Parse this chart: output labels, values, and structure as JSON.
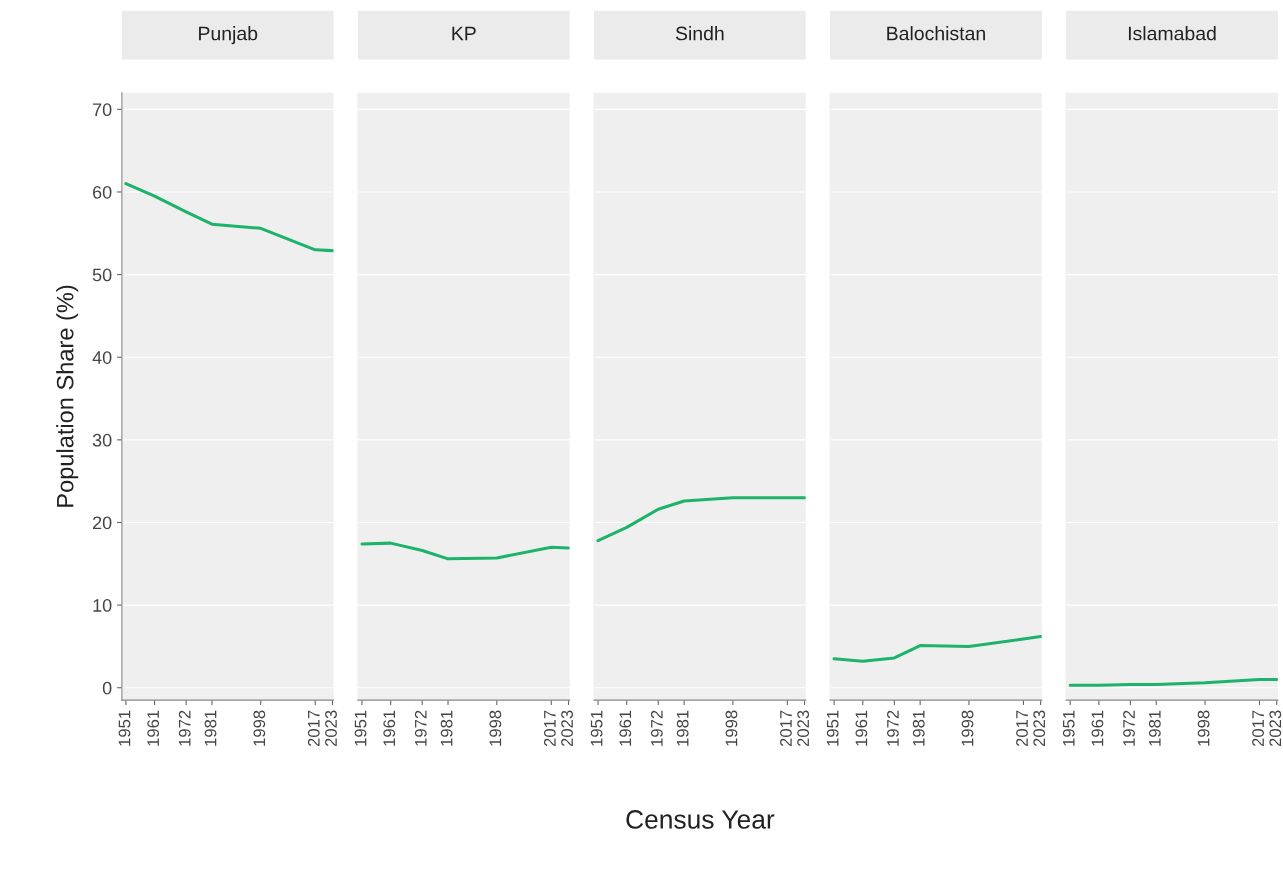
{
  "chart_data": [
    {
      "type": "line",
      "title": "Punjab",
      "ylabel": "Population Share (%)",
      "x": [
        1951,
        1961,
        1972,
        1981,
        1998,
        2017,
        2023
      ],
      "series": [
        {
          "color": "#1db36b",
          "values": [
            61.0,
            59.5,
            57.6,
            56.1,
            55.6,
            53.0,
            52.9
          ]
        }
      ],
      "xlim": [
        1949.6,
        2023.4
      ],
      "ylim": [
        -1.5,
        72
      ],
      "xticks": [
        1951,
        1961,
        1972,
        1981,
        1998,
        2017,
        2023
      ],
      "yticks": [
        0,
        10,
        20,
        30,
        40,
        50,
        60,
        70
      ],
      "grid": "y",
      "legend": false
    },
    {
      "type": "line",
      "title": "KP",
      "x": [
        1951,
        1961,
        1972,
        1981,
        1998,
        2017,
        2023
      ],
      "series": [
        {
          "color": "#1db36b",
          "values": [
            17.4,
            17.5,
            16.6,
            15.6,
            15.7,
            17.0,
            16.9
          ]
        }
      ],
      "xlim": [
        1949.6,
        2023.4
      ],
      "ylim": [
        -1.5,
        72
      ],
      "xticks": [
        1951,
        1961,
        1972,
        1981,
        1998,
        2017,
        2023
      ],
      "yticks": [
        0,
        10,
        20,
        30,
        40,
        50,
        60,
        70
      ],
      "grid": "y",
      "legend": false,
      "tick_labels": "x"
    },
    {
      "type": "line",
      "title": "Sindh",
      "xlabel": "Census Year",
      "x": [
        1951,
        1961,
        1972,
        1981,
        1998,
        2017,
        2023
      ],
      "series": [
        {
          "color": "#1db36b",
          "values": [
            17.8,
            19.4,
            21.6,
            22.6,
            23.0,
            23.0,
            23.0
          ]
        }
      ],
      "xlim": [
        1949.6,
        2023.4
      ],
      "ylim": [
        -1.5,
        72
      ],
      "xticks": [
        1951,
        1961,
        1972,
        1981,
        1998,
        2017,
        2023
      ],
      "yticks": [
        0,
        10,
        20,
        30,
        40,
        50,
        60,
        70
      ],
      "grid": "y",
      "legend": false,
      "tick_labels": "x"
    },
    {
      "type": "line",
      "title": "Balochistan",
      "x": [
        1951,
        1961,
        1972,
        1981,
        1998,
        2017,
        2023
      ],
      "series": [
        {
          "color": "#1db36b",
          "values": [
            3.5,
            3.2,
            3.6,
            5.1,
            5.0,
            5.9,
            6.2
          ]
        }
      ],
      "xlim": [
        1949.6,
        2023.4
      ],
      "ylim": [
        -1.5,
        72
      ],
      "xticks": [
        1951,
        1961,
        1972,
        1981,
        1998,
        2017,
        2023
      ],
      "yticks": [
        0,
        10,
        20,
        30,
        40,
        50,
        60,
        70
      ],
      "grid": "y",
      "legend": false,
      "tick_labels": "x"
    },
    {
      "type": "line",
      "title": "Islamabad",
      "x": [
        1951,
        1961,
        1972,
        1981,
        1998,
        2017,
        2023
      ],
      "series": [
        {
          "color": "#1db36b",
          "values": [
            0.3,
            0.3,
            0.4,
            0.4,
            0.6,
            1.0,
            1.0
          ]
        }
      ],
      "xlim": [
        1949.6,
        2023.4
      ],
      "ylim": [
        -1.5,
        72
      ],
      "xticks": [
        1951,
        1961,
        1972,
        1981,
        1998,
        2017,
        2023
      ],
      "yticks": [
        0,
        10,
        20,
        30,
        40,
        50,
        60,
        70
      ],
      "grid": "y",
      "legend": false,
      "tick_labels": "x"
    }
  ]
}
